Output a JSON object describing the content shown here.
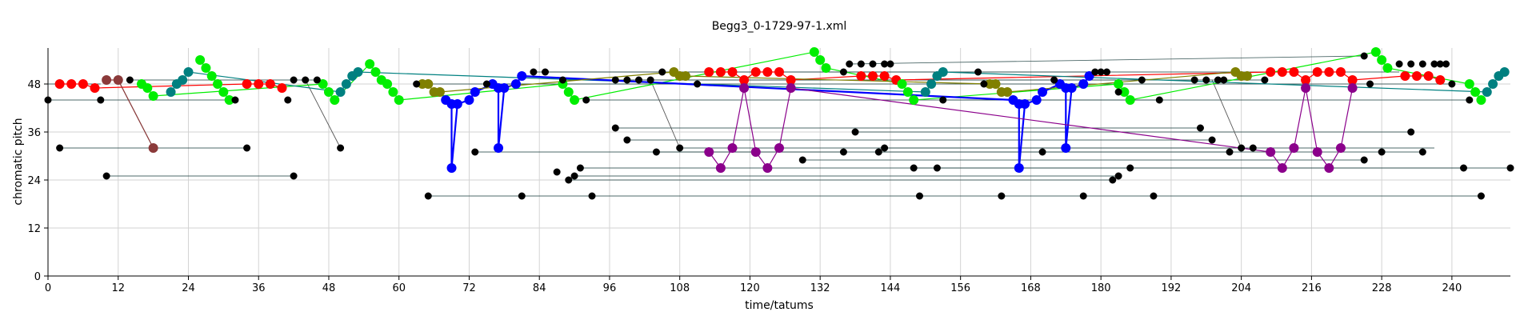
{
  "chart_data": {
    "type": "scatter",
    "title": "Begg3_0-1729-97-1.xml",
    "xlabel": "time/tatums",
    "ylabel": "chromatic pitch",
    "xlim": [
      0,
      250
    ],
    "ylim": [
      0,
      57
    ],
    "xticks": [
      0,
      12,
      24,
      36,
      48,
      60,
      72,
      84,
      96,
      108,
      120,
      132,
      144,
      156,
      168,
      180,
      192,
      204,
      216,
      228,
      240
    ],
    "yticks": [
      0,
      12,
      24,
      36,
      48
    ],
    "grid": true,
    "legend": "none",
    "colors": {
      "black": "#000000",
      "red": "#ff0000",
      "green": "#00ee00",
      "teal": "#008080",
      "blue": "#0000ff",
      "purple": "#8b008b",
      "olive": "#808000",
      "brown": "#8b3a3a",
      "gray_line": "#2f4f4f"
    },
    "series": [
      {
        "color": "red",
        "connected": true,
        "points": [
          [
            2,
            48
          ],
          [
            4,
            48
          ],
          [
            6,
            48
          ],
          [
            8,
            47
          ],
          [
            34,
            48
          ],
          [
            36,
            48
          ],
          [
            38,
            48
          ],
          [
            40,
            47
          ]
        ]
      },
      {
        "color": "red",
        "connected": true,
        "points": [
          [
            113,
            51
          ],
          [
            115,
            51
          ],
          [
            117,
            51
          ],
          [
            119,
            49
          ],
          [
            121,
            51
          ],
          [
            123,
            51
          ],
          [
            125,
            51
          ],
          [
            127,
            49
          ],
          [
            139,
            50
          ],
          [
            141,
            50
          ],
          [
            143,
            50
          ],
          [
            145,
            49
          ],
          [
            209,
            51
          ],
          [
            211,
            51
          ],
          [
            213,
            51
          ],
          [
            215,
            49
          ],
          [
            217,
            51
          ],
          [
            219,
            51
          ],
          [
            221,
            51
          ],
          [
            223,
            49
          ],
          [
            232,
            50
          ],
          [
            234,
            50
          ],
          [
            236,
            50
          ],
          [
            238,
            49
          ]
        ]
      },
      {
        "color": "green",
        "connected": true,
        "points": [
          [
            16,
            48
          ],
          [
            17,
            47
          ],
          [
            18,
            45
          ],
          [
            47,
            48
          ],
          [
            48,
            46
          ],
          [
            49,
            44
          ],
          [
            55,
            53
          ],
          [
            56,
            51
          ],
          [
            57,
            49
          ],
          [
            58,
            48
          ],
          [
            59,
            46
          ],
          [
            60,
            44
          ],
          [
            88,
            48
          ],
          [
            89,
            46
          ],
          [
            90,
            44
          ],
          [
            131,
            56
          ],
          [
            132,
            54
          ],
          [
            133,
            52
          ],
          [
            146,
            48
          ],
          [
            147,
            46
          ],
          [
            148,
            44
          ],
          [
            183,
            48
          ],
          [
            184,
            46
          ],
          [
            185,
            44
          ],
          [
            227,
            56
          ],
          [
            228,
            54
          ],
          [
            229,
            52
          ],
          [
            243,
            48
          ],
          [
            244,
            46
          ],
          [
            245,
            44
          ]
        ]
      },
      {
        "color": "green",
        "connected": true,
        "points": [
          [
            26,
            54
          ],
          [
            27,
            52
          ],
          [
            28,
            50
          ],
          [
            29,
            48
          ],
          [
            30,
            46
          ],
          [
            31,
            44
          ]
        ]
      },
      {
        "color": "teal",
        "connected": true,
        "points": [
          [
            21,
            46
          ],
          [
            22,
            48
          ],
          [
            23,
            49
          ],
          [
            24,
            51
          ],
          [
            50,
            46
          ],
          [
            51,
            48
          ],
          [
            52,
            50
          ],
          [
            53,
            51
          ],
          [
            150,
            46
          ],
          [
            151,
            48
          ],
          [
            152,
            50
          ],
          [
            153,
            51
          ],
          [
            246,
            46
          ],
          [
            247,
            48
          ],
          [
            248,
            50
          ],
          [
            249,
            51
          ]
        ]
      },
      {
        "color": "blue",
        "connected": true,
        "points": [
          [
            68,
            44
          ],
          [
            69,
            43
          ],
          [
            69,
            27
          ],
          [
            70,
            43
          ],
          [
            72,
            44
          ],
          [
            73,
            46
          ],
          [
            76,
            48
          ],
          [
            77,
            47
          ],
          [
            77,
            32
          ],
          [
            78,
            47
          ],
          [
            80,
            48
          ],
          [
            81,
            50
          ],
          [
            165,
            44
          ],
          [
            166,
            43
          ],
          [
            166,
            27
          ],
          [
            167,
            43
          ],
          [
            169,
            44
          ],
          [
            170,
            46
          ],
          [
            173,
            48
          ],
          [
            174,
            47
          ],
          [
            174,
            32
          ],
          [
            175,
            47
          ],
          [
            177,
            48
          ],
          [
            178,
            50
          ]
        ]
      },
      {
        "color": "purple",
        "connected": true,
        "points": [
          [
            113,
            31
          ],
          [
            115,
            27
          ],
          [
            117,
            32
          ],
          [
            119,
            47
          ],
          [
            121,
            31
          ],
          [
            123,
            27
          ],
          [
            125,
            32
          ],
          [
            127,
            47
          ],
          [
            209,
            31
          ],
          [
            211,
            27
          ],
          [
            213,
            32
          ],
          [
            215,
            47
          ],
          [
            217,
            31
          ],
          [
            219,
            27
          ],
          [
            221,
            32
          ],
          [
            223,
            47
          ]
        ]
      },
      {
        "color": "olive",
        "connected": true,
        "points": [
          [
            64,
            48
          ],
          [
            65,
            48
          ],
          [
            66,
            46
          ],
          [
            67,
            46
          ],
          [
            107,
            51
          ],
          [
            108,
            50
          ],
          [
            109,
            50
          ],
          [
            161,
            48
          ],
          [
            162,
            48
          ],
          [
            163,
            46
          ],
          [
            164,
            46
          ],
          [
            203,
            51
          ],
          [
            204,
            50
          ],
          [
            205,
            50
          ]
        ]
      },
      {
        "color": "brown",
        "connected": true,
        "points": [
          [
            10,
            49
          ],
          [
            12,
            49
          ],
          [
            18,
            32
          ]
        ]
      },
      {
        "color": "black",
        "connected": false,
        "points": [
          [
            0,
            44
          ],
          [
            2,
            32
          ],
          [
            9,
            44
          ],
          [
            10,
            25
          ],
          [
            14,
            49
          ],
          [
            32,
            44
          ],
          [
            34,
            32
          ],
          [
            41,
            44
          ],
          [
            42,
            25
          ],
          [
            42,
            49
          ],
          [
            44,
            49
          ],
          [
            46,
            49
          ],
          [
            50,
            32
          ],
          [
            63,
            48
          ],
          [
            65,
            20
          ],
          [
            73,
            31
          ],
          [
            75,
            48
          ],
          [
            81,
            20
          ],
          [
            83,
            51
          ],
          [
            85,
            51
          ],
          [
            87,
            26
          ],
          [
            88,
            49
          ],
          [
            89,
            24
          ],
          [
            90,
            25
          ],
          [
            91,
            27
          ],
          [
            92,
            44
          ],
          [
            93,
            20
          ],
          [
            97,
            49
          ],
          [
            97,
            37
          ],
          [
            99,
            49
          ],
          [
            99,
            34
          ],
          [
            101,
            49
          ],
          [
            103,
            49
          ],
          [
            104,
            31
          ],
          [
            105,
            51
          ],
          [
            108,
            32
          ],
          [
            111,
            48
          ],
          [
            129,
            29
          ],
          [
            136,
            31
          ],
          [
            136,
            51
          ],
          [
            137,
            53
          ],
          [
            138,
            36
          ],
          [
            139,
            53
          ],
          [
            141,
            53
          ],
          [
            142,
            31
          ],
          [
            143,
            53
          ],
          [
            143,
            32
          ],
          [
            144,
            53
          ],
          [
            148,
            27
          ],
          [
            149,
            20
          ],
          [
            152,
            27
          ],
          [
            153,
            44
          ],
          [
            159,
            51
          ],
          [
            160,
            48
          ],
          [
            163,
            20
          ],
          [
            170,
            31
          ],
          [
            172,
            49
          ],
          [
            177,
            20
          ],
          [
            179,
            51
          ],
          [
            180,
            51
          ],
          [
            181,
            51
          ],
          [
            182,
            24
          ],
          [
            183,
            46
          ],
          [
            183,
            25
          ],
          [
            185,
            27
          ],
          [
            187,
            49
          ],
          [
            189,
            20
          ],
          [
            190,
            44
          ],
          [
            196,
            49
          ],
          [
            197,
            37
          ],
          [
            198,
            49
          ],
          [
            199,
            34
          ],
          [
            200,
            49
          ],
          [
            201,
            49
          ],
          [
            202,
            31
          ],
          [
            204,
            32
          ],
          [
            206,
            32
          ],
          [
            208,
            49
          ],
          [
            225,
            55
          ],
          [
            225,
            29
          ],
          [
            226,
            48
          ],
          [
            228,
            31
          ],
          [
            231,
            53
          ],
          [
            233,
            36
          ],
          [
            233,
            53
          ],
          [
            235,
            53
          ],
          [
            235,
            31
          ],
          [
            237,
            53
          ],
          [
            238,
            53
          ],
          [
            239,
            53
          ],
          [
            240,
            48
          ],
          [
            242,
            27
          ],
          [
            243,
            44
          ],
          [
            245,
            20
          ],
          [
            250,
            27
          ]
        ]
      }
    ],
    "sustain_lines": [
      [
        [
          0,
          44
        ],
        [
          32,
          44
        ]
      ],
      [
        [
          2,
          32
        ],
        [
          34,
          32
        ]
      ],
      [
        [
          10,
          25
        ],
        [
          42,
          25
        ]
      ],
      [
        [
          14,
          49
        ],
        [
          46,
          49
        ]
      ],
      [
        [
          0,
          48
        ],
        [
          9,
          48
        ]
      ],
      [
        [
          63,
          48
        ],
        [
          111,
          48
        ]
      ],
      [
        [
          65,
          20
        ],
        [
          245,
          20
        ]
      ],
      [
        [
          73,
          31
        ],
        [
          136,
          31
        ]
      ],
      [
        [
          75,
          48
        ],
        [
          160,
          48
        ]
      ],
      [
        [
          83,
          51
        ],
        [
          159,
          51
        ]
      ],
      [
        [
          85,
          51
        ],
        [
          179,
          51
        ]
      ],
      [
        [
          88,
          49
        ],
        [
          187,
          49
        ]
      ],
      [
        [
          89,
          24
        ],
        [
          182,
          24
        ]
      ],
      [
        [
          90,
          25
        ],
        [
          183,
          25
        ]
      ],
      [
        [
          91,
          27
        ],
        [
          185,
          27
        ]
      ],
      [
        [
          92,
          44
        ],
        [
          190,
          44
        ]
      ],
      [
        [
          97,
          37
        ],
        [
          197,
          37
        ]
      ],
      [
        [
          99,
          34
        ],
        [
          199,
          34
        ]
      ],
      [
        [
          104,
          31
        ],
        [
          202,
          31
        ]
      ],
      [
        [
          108,
          32
        ],
        [
          204,
          32
        ]
      ],
      [
        [
          129,
          29
        ],
        [
          225,
          29
        ]
      ],
      [
        [
          136,
          51
        ],
        [
          231,
          51
        ]
      ],
      [
        [
          137,
          53
        ],
        [
          225,
          55
        ]
      ],
      [
        [
          138,
          36
        ],
        [
          233,
          36
        ]
      ],
      [
        [
          142,
          31
        ],
        [
          235,
          31
        ]
      ],
      [
        [
          143,
          32
        ],
        [
          237,
          32
        ]
      ],
      [
        [
          148,
          27
        ],
        [
          242,
          27
        ]
      ],
      [
        [
          153,
          44
        ],
        [
          243,
          44
        ]
      ],
      [
        [
          152,
          27
        ],
        [
          250,
          27
        ]
      ],
      [
        [
          160,
          48
        ],
        [
          240,
          48
        ]
      ],
      [
        [
          97,
          49
        ],
        [
          208,
          49
        ]
      ]
    ],
    "slanted_lines": [
      [
        [
          12,
          49
        ],
        [
          18,
          32
        ]
      ],
      [
        [
          44,
          49
        ],
        [
          50,
          32
        ]
      ],
      [
        [
          103,
          49
        ],
        [
          108,
          32
        ]
      ],
      [
        [
          199,
          49
        ],
        [
          204,
          32
        ]
      ]
    ]
  }
}
